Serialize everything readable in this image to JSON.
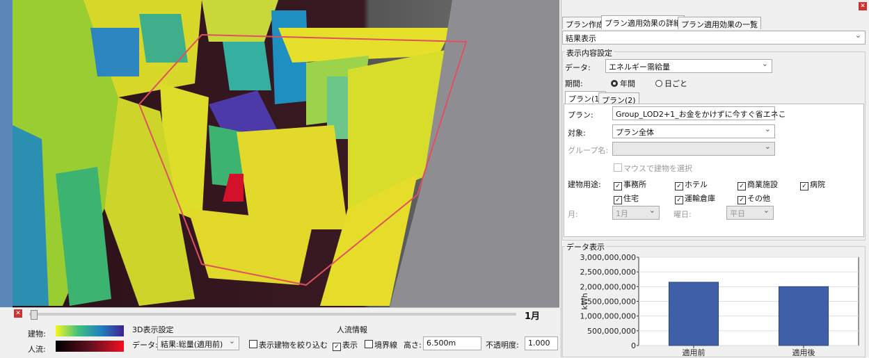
{
  "tabs": [
    "プラン作成",
    "プラン適用効果の詳細",
    "プラン適用効果の一覧"
  ],
  "view_select": "結果表示",
  "display_settings": {
    "title": "表示内容設定",
    "data_label": "データ:",
    "data_value": "エネルギー需給量",
    "period_label": "期間:",
    "period_options": [
      "年間",
      "日ごと"
    ],
    "plan_tabs": [
      "プラン(1)",
      "プラン(2)"
    ],
    "plan_label": "プラン:",
    "plan_value": "Group_LOD2+1_お金をかけずに今すぐ省エネこ",
    "target_label": "対象:",
    "target_value": "プラン全体",
    "group_label": "グループ名:",
    "mouse_select": "マウスで建物を選択",
    "usage_label": "建物用途:",
    "usages": [
      "事務所",
      "ホテル",
      "商業施設",
      "病院",
      "住宅",
      "運輸倉庫",
      "その他"
    ],
    "month_label": "月:",
    "month_value": "1月",
    "weekday_label": "曜日:",
    "weekday_value": "平日"
  },
  "chart_data": {
    "type": "bar",
    "title": "データ表示",
    "y_label": "kWh",
    "categories": [
      "適用前",
      "適用後"
    ],
    "values": [
      2150000000,
      2000000000
    ],
    "color": "#3f5fa8",
    "ylim": [
      0,
      3000000000
    ],
    "yticks": [
      {
        "value": 0,
        "label": "0"
      },
      {
        "value": 500000000,
        "label": "500,000,000"
      },
      {
        "value": 1000000000,
        "label": "1,000,000,000"
      },
      {
        "value": 1500000000,
        "label": "1,500,000,000"
      },
      {
        "value": 2000000000,
        "label": "2,000,000,000"
      },
      {
        "value": 2500000000,
        "label": "2,500,000,000"
      },
      {
        "value": 3000000000,
        "label": "3,000,000,000"
      }
    ],
    "grid": true
  },
  "bottom": {
    "month": "1月",
    "legend": {
      "building": "建物:",
      "flow": "人流:"
    },
    "settings3d": {
      "title": "3D表示設定",
      "data_label": "データ:",
      "data_value": "結果:総量(適用前)",
      "filter": "表示建物を絞り込む"
    },
    "flow": {
      "title": "人流情報",
      "show": "表示",
      "boundary": "境界線",
      "height_label": "高さ:",
      "height_value": "6.500m",
      "opacity_label": "不透明度:",
      "opacity_value": "1.000"
    }
  }
}
